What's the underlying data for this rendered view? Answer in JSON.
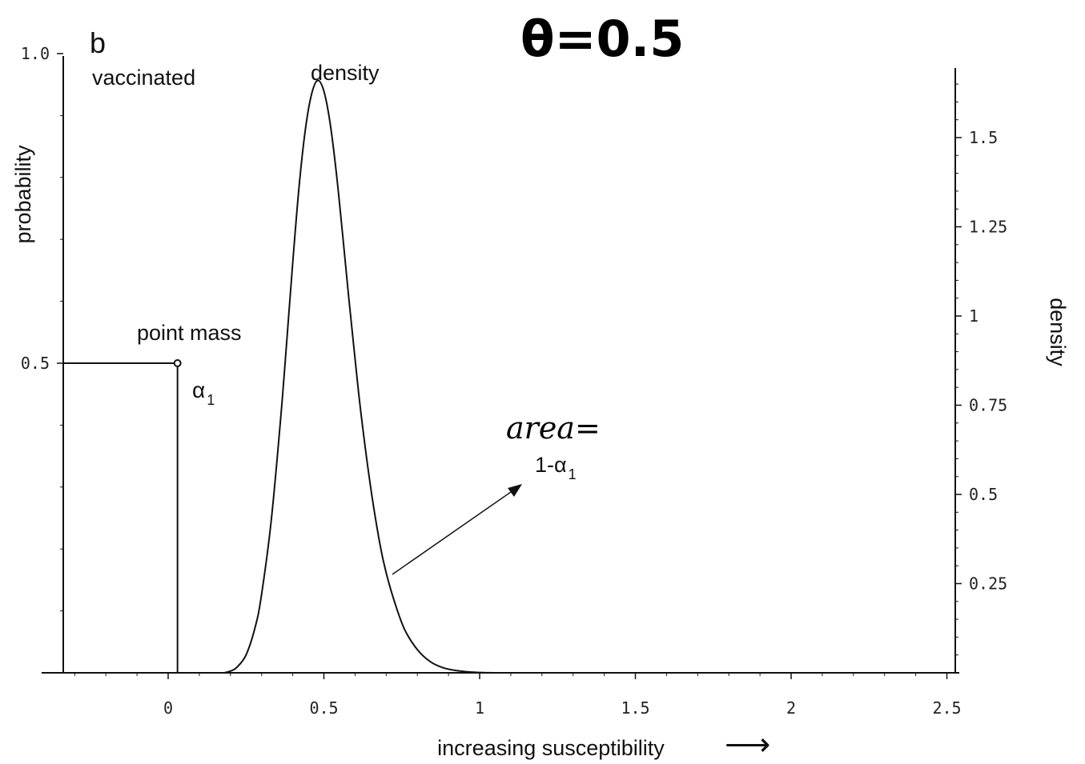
{
  "chart_data": {
    "type": "line",
    "panel_letter": "b",
    "handwritten_title": "θ=0.5",
    "group_label": "vaccinated",
    "curve_label": "density",
    "xlabel": "increasing susceptibility",
    "ylabel_left": "probability",
    "ylabel_right": "density",
    "xlim": [
      -0.35,
      2.5
    ],
    "ylim_left": [
      0,
      1.0
    ],
    "ylim_right": [
      0,
      1.75
    ],
    "x_ticks": [
      {
        "value": 0,
        "label": "0"
      },
      {
        "value": 0.5,
        "label": "0.5"
      },
      {
        "value": 1,
        "label": "1"
      },
      {
        "value": 1.5,
        "label": "1.5"
      },
      {
        "value": 2,
        "label": "2"
      },
      {
        "value": 2.5,
        "label": "2.5"
      }
    ],
    "y_left_ticks": [
      {
        "value": 0.5,
        "label": "0.5"
      },
      {
        "value": 1.0,
        "label": "1.0"
      }
    ],
    "y_right_ticks": [
      {
        "value": 0.25,
        "label": "0.25"
      },
      {
        "value": 0.5,
        "label": "0.5"
      },
      {
        "value": 0.75,
        "label": "0.75"
      },
      {
        "value": 1,
        "label": "1"
      },
      {
        "value": 1.25,
        "label": "1.25"
      },
      {
        "value": 1.5,
        "label": "1.5"
      }
    ],
    "point_mass": {
      "x": 0.03,
      "probability": 0.5,
      "label": "point mass",
      "symbol": "α",
      "subscript": "1"
    },
    "density_curve": {
      "x": [
        0.18,
        0.2,
        0.22,
        0.25,
        0.28,
        0.3,
        0.33,
        0.36,
        0.38,
        0.4,
        0.42,
        0.44,
        0.46,
        0.48,
        0.5,
        0.52,
        0.54,
        0.56,
        0.58,
        0.6,
        0.62,
        0.65,
        0.68,
        0.7,
        0.73,
        0.76,
        0.8,
        0.84,
        0.88,
        0.92,
        0.96,
        1.0,
        1.05
      ],
      "y": [
        0.0,
        0.005,
        0.015,
        0.05,
        0.13,
        0.22,
        0.42,
        0.7,
        0.92,
        1.15,
        1.36,
        1.52,
        1.62,
        1.66,
        1.63,
        1.54,
        1.4,
        1.23,
        1.05,
        0.88,
        0.72,
        0.52,
        0.36,
        0.28,
        0.19,
        0.12,
        0.065,
        0.032,
        0.015,
        0.007,
        0.003,
        0.001,
        0.0
      ]
    },
    "annotation": {
      "text": "area=",
      "complement_prefix": "1-",
      "symbol": "α",
      "subscript": "1"
    },
    "arrow_glyph": "⟶"
  }
}
